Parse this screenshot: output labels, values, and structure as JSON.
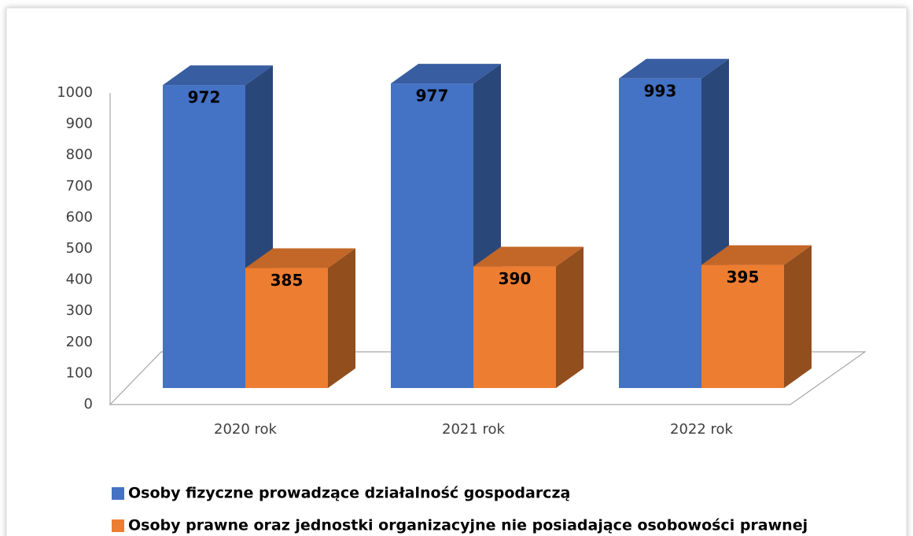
{
  "chart_data": {
    "type": "bar3d",
    "categories": [
      "2020 rok",
      "2021 rok",
      "2022 rok"
    ],
    "series": [
      {
        "name": "Osoby fizyczne prowadzące działalność gospodarczą",
        "color": "#4472c4",
        "values": [
          972,
          977,
          993
        ]
      },
      {
        "name": "Osoby prawne oraz jednostki organizacyjne nie posiadające osobowości prawnej",
        "color": "#ed7d31",
        "values": [
          385,
          390,
          395
        ]
      }
    ],
    "ylim": [
      0,
      1000
    ],
    "yticks": [
      0,
      100,
      200,
      300,
      400,
      500,
      600,
      700,
      800,
      900,
      1000
    ],
    "legend": "bottom"
  }
}
